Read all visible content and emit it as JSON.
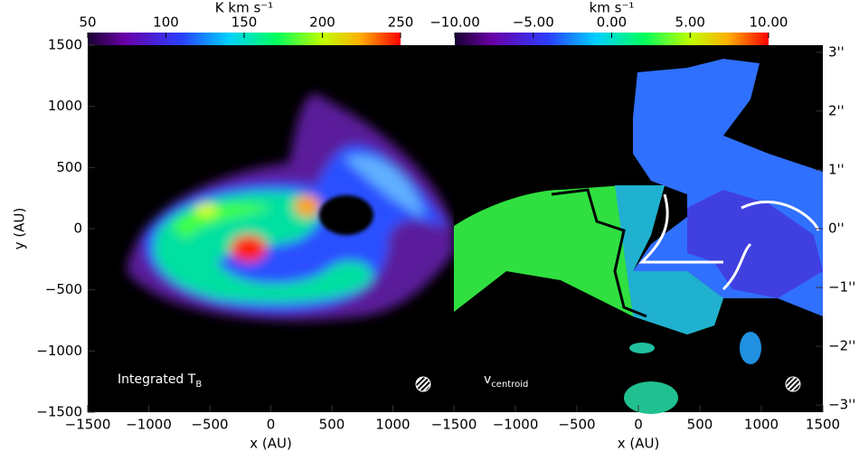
{
  "chart_data": [
    {
      "type": "image",
      "colorbar": {
        "label": "K km s⁻¹",
        "lim": [
          50,
          250
        ],
        "ticks": [
          50,
          100,
          150,
          200,
          250
        ]
      },
      "xlabel": "x (AU)",
      "ylabel": "y (AU)",
      "xlim": [
        -1500,
        1500
      ],
      "xticks": [
        {
          "value": -1500,
          "label": "−1500"
        },
        {
          "value": -1000,
          "label": "−1000"
        },
        {
          "value": -500,
          "label": "−500"
        },
        0,
        500,
        1000
      ],
      "ylim": [
        -1500,
        1500
      ],
      "yticks": [
        {
          "value": -1500,
          "label": "−1500"
        },
        {
          "value": -1000,
          "label": "−1000"
        },
        {
          "value": -500,
          "label": "−500"
        },
        0,
        500,
        1000,
        1500
      ],
      "annotation": {
        "text": "Integrated T",
        "subscript": "B"
      }
    },
    {
      "type": "image",
      "colorbar": {
        "label": "km s⁻¹",
        "lim": [
          -10,
          10
        ],
        "ticks": [
          {
            "value": -10,
            "label": "−10.00"
          },
          {
            "value": -5,
            "label": "−5.00"
          },
          {
            "value": 0,
            "label": "0.00"
          },
          {
            "value": 5,
            "label": "5.00"
          },
          {
            "value": 10,
            "label": "10.00"
          }
        ]
      },
      "xlabel": "x (AU)",
      "xlim": [
        -1500,
        1500
      ],
      "xticks": [
        {
          "value": -1500,
          "label": "−1500"
        },
        {
          "value": -1000,
          "label": "−1000"
        },
        {
          "value": -500,
          "label": "−500"
        },
        0,
        500,
        1000,
        1500
      ],
      "ylim": [
        -1500,
        1500
      ],
      "y2lim": [
        -3.12,
        3.12
      ],
      "y2ticks": [
        {
          "value": -3,
          "label": "−3''"
        },
        {
          "value": -2,
          "label": "−2''"
        },
        {
          "value": -1,
          "label": "−1''"
        },
        {
          "value": 0,
          "label": "0''"
        },
        {
          "value": 1,
          "label": "1''"
        },
        {
          "value": 2,
          "label": "2''"
        },
        {
          "value": 3,
          "label": "3''"
        }
      ],
      "annotation": {
        "text": "v",
        "subscript": "centroid"
      }
    }
  ]
}
